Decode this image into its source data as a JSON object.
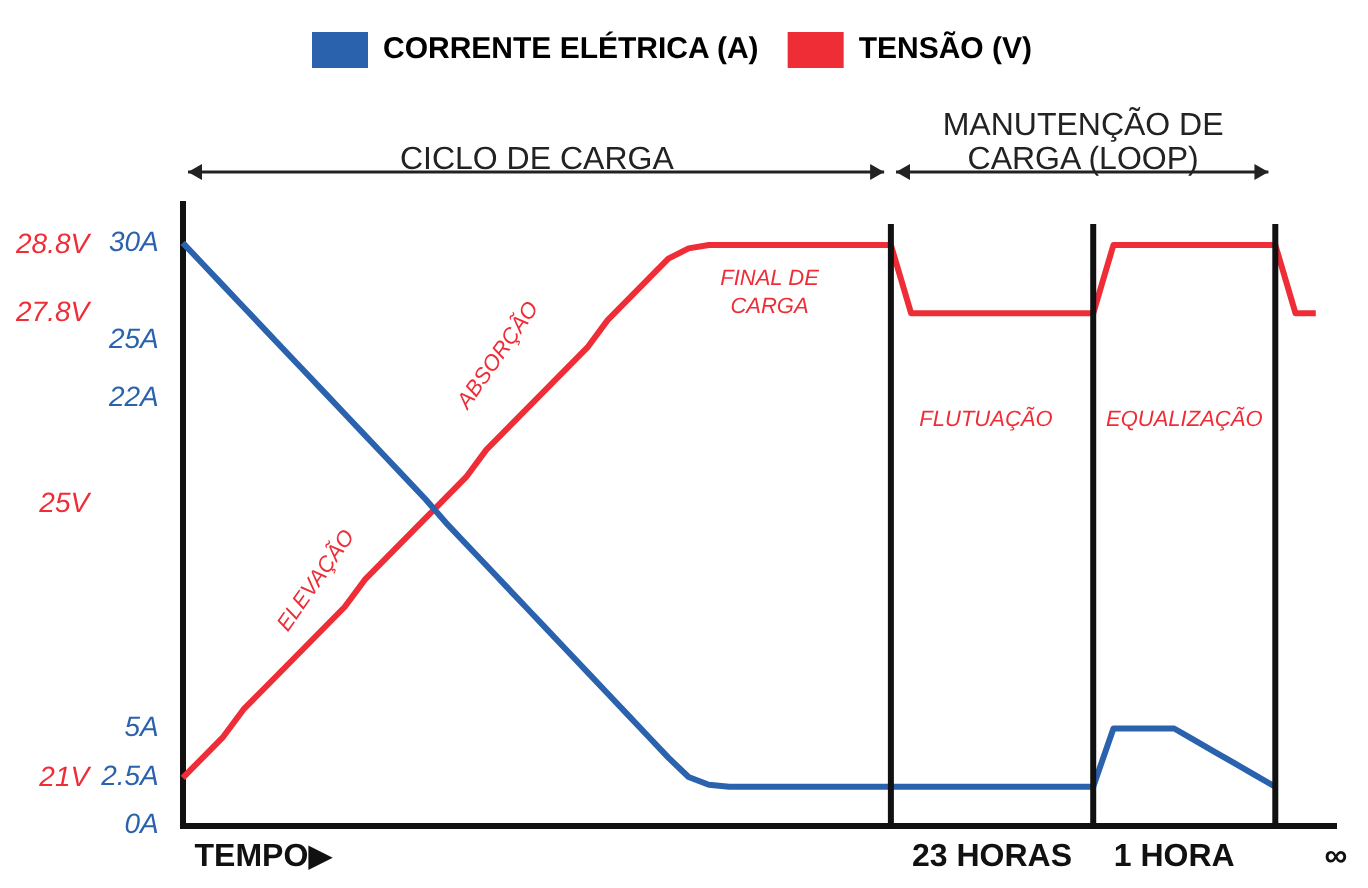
{
  "chart_data": {
    "type": "line",
    "annotations": [
      "CICLO DE CARGA",
      "MANUTENÇÃO DE CARGA (LOOP)",
      "ELEVAÇÃO",
      "ABSORÇÃO",
      "FINAL DE\nCARGA",
      "FLUTUAÇÃO",
      "EQUALIZAÇÃO"
    ],
    "categories": [
      null,
      null,
      null,
      null,
      "TEMPO▶",
      null,
      null,
      null,
      null,
      null,
      null,
      null,
      null,
      null,
      null,
      null,
      null,
      null,
      null,
      null,
      null,
      null,
      null,
      null,
      null,
      null,
      null,
      null,
      null,
      null,
      null,
      null,
      null,
      null,
      null,
      null,
      null,
      null,
      null,
      null,
      "23 HORAS",
      null,
      null,
      null,
      null,
      null,
      null,
      null,
      null,
      "1 HORA",
      null,
      null,
      null,
      null,
      null,
      null,
      null,
      "∞"
    ],
    "series": [
      {
        "name": "CORRENTE ELÉTRICA (A)",
        "color": "#2a62ae",
        "values": [
          30,
          28.9,
          27.8,
          26.7,
          25.6,
          24.5,
          23.4,
          22.3,
          21.2,
          20.1,
          19,
          17.9,
          16.8,
          15.6,
          14.5,
          13.4,
          12.3,
          11.2,
          10.1,
          9,
          7.9,
          6.8,
          5.7,
          4.6,
          3.5,
          2.5,
          2.1,
          2,
          2,
          2,
          2,
          2,
          2,
          2,
          2,
          2,
          2,
          2,
          2,
          2,
          2,
          2,
          2,
          2,
          2,
          2,
          5,
          5,
          5,
          5,
          4.4,
          3.8,
          3.2,
          2.6,
          2,
          null,
          null,
          null
        ]
      },
      {
        "name": "TENSÃO (V)",
        "color": "#ee2d37",
        "axis": "y2",
        "values": [
          21,
          21.3,
          21.6,
          22,
          22.3,
          22.6,
          22.9,
          23.2,
          23.5,
          23.9,
          24.2,
          24.5,
          24.8,
          25.1,
          25.4,
          25.8,
          26.1,
          26.4,
          26.7,
          27,
          27.3,
          27.7,
          28,
          28.3,
          28.6,
          28.75,
          28.8,
          28.8,
          28.8,
          28.8,
          28.8,
          28.8,
          28.8,
          28.8,
          28.8,
          28.8,
          27.8,
          27.8,
          27.8,
          27.8,
          27.8,
          27.8,
          27.8,
          27.8,
          27.8,
          27.8,
          28.8,
          28.8,
          28.8,
          28.8,
          28.8,
          28.8,
          28.8,
          28.8,
          28.8,
          27.8,
          27.8,
          null
        ]
      }
    ],
    "ylim": [
      0,
      32
    ],
    "yticks": [
      {
        "value": 0,
        "label": "0A"
      },
      {
        "value": 2.5,
        "label": "2.5A"
      },
      {
        "value": 5,
        "label": "5A"
      },
      {
        "value": 22,
        "label": "22A"
      },
      {
        "value": 25,
        "label": "25A"
      },
      {
        "value": 30,
        "label": "30A"
      }
    ],
    "y2lim": [
      20.3,
      29.4
    ],
    "y2ticks": [
      {
        "value": 21,
        "label": "21V"
      },
      {
        "value": 25,
        "label": "25V"
      },
      {
        "value": 27.8,
        "label": "27.8V"
      },
      {
        "value": 28.8,
        "label": "28.8V"
      }
    ],
    "grid": false,
    "legend": "top",
    "marker": "none",
    "line_style": "solid"
  }
}
